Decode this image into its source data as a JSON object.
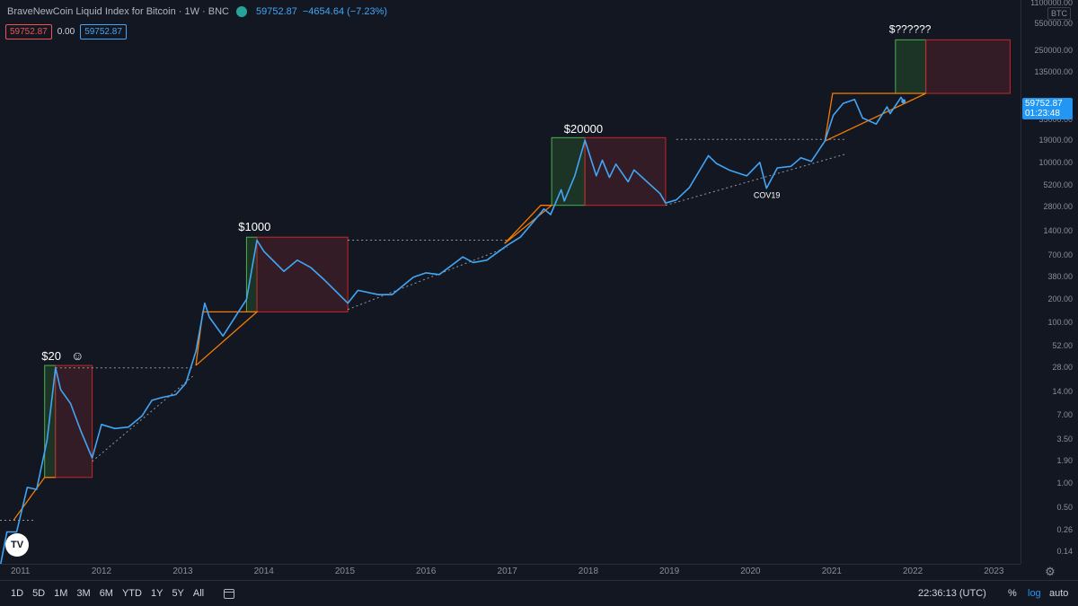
{
  "legend": {
    "title": "BraveNewCoin Liquid Index for Bitcoin · 1W · BNC",
    "last_price": "59752.87",
    "change": "−4654.64 (−7.23%)",
    "ind_red": "59752.87",
    "ind_plain": "0.00",
    "ind_blue": "59752.87"
  },
  "colors": {
    "price_line": "#42a5f5",
    "box_green": "#1f3a26",
    "box_red": "#3a1d26",
    "trend_orange": "#f57c00",
    "accent": "#2196f3"
  },
  "price_axis": {
    "unit_tag": "BTC",
    "top_label": "1100000.00",
    "labels": [
      "550000.00",
      "250000.00",
      "135000.00",
      "59752.87",
      "35000.00",
      "19000.00",
      "10000.00",
      "5200.00",
      "2800.00",
      "1400.00",
      "700.00",
      "380.00",
      "200.00",
      "100.00",
      "52.00",
      "28.00",
      "14.00",
      "7.00",
      "3.50",
      "1.90",
      "1.00",
      "0.50",
      "0.26",
      "0.14"
    ],
    "last_tag_price": "59752.87",
    "last_tag_countdown": "01:23:48"
  },
  "time_axis": {
    "labels": [
      "2011",
      "2012",
      "2013",
      "2014",
      "2015",
      "2016",
      "2017",
      "2018",
      "2019",
      "2020",
      "2021",
      "2022",
      "2023"
    ]
  },
  "bottom_bar": {
    "timeframes": [
      "1D",
      "5D",
      "1M",
      "3M",
      "6M",
      "YTD",
      "1Y",
      "5Y",
      "All"
    ],
    "clock": "22:36:13 (UTC)",
    "percent": "%",
    "log": "log",
    "auto": "auto"
  },
  "annotations": [
    "$20",
    "$1000",
    "$20000",
    "$??????",
    "COV19"
  ],
  "chart_data": {
    "type": "line",
    "yscale": "log",
    "ylim": [
      0.1,
      1100000
    ],
    "xlim": [
      "2010-10",
      "2023-05"
    ],
    "series": [
      {
        "values": [
          [
            "2010-10-01",
            0.09
          ],
          [
            "2010-11-01",
            0.25
          ],
          [
            "2010-12-15",
            0.25
          ],
          [
            "2011-02-01",
            0.9
          ],
          [
            "2011-03-15",
            0.85
          ],
          [
            "2011-05-01",
            3.5
          ],
          [
            "2011-06-08",
            28
          ],
          [
            "2011-07-01",
            15
          ],
          [
            "2011-08-15",
            10
          ],
          [
            "2011-10-01",
            4.5
          ],
          [
            "2011-11-20",
            2.1
          ],
          [
            "2012-01-01",
            5.5
          ],
          [
            "2012-03-01",
            4.9
          ],
          [
            "2012-05-01",
            5.1
          ],
          [
            "2012-07-01",
            7
          ],
          [
            "2012-08-15",
            11
          ],
          [
            "2012-10-01",
            12
          ],
          [
            "2012-12-01",
            13
          ],
          [
            "2013-01-15",
            18
          ],
          [
            "2013-03-01",
            45
          ],
          [
            "2013-04-10",
            180
          ],
          [
            "2013-05-01",
            120
          ],
          [
            "2013-07-01",
            70
          ],
          [
            "2013-09-01",
            130
          ],
          [
            "2013-10-15",
            200
          ],
          [
            "2013-12-01",
            1100
          ],
          [
            "2014-01-01",
            800
          ],
          [
            "2014-02-15",
            600
          ],
          [
            "2014-04-01",
            450
          ],
          [
            "2014-06-01",
            620
          ],
          [
            "2014-08-01",
            500
          ],
          [
            "2014-10-01",
            350
          ],
          [
            "2015-01-14",
            180
          ],
          [
            "2015-03-01",
            260
          ],
          [
            "2015-06-01",
            230
          ],
          [
            "2015-08-01",
            230
          ],
          [
            "2015-11-05",
            380
          ],
          [
            "2016-01-01",
            430
          ],
          [
            "2016-03-01",
            410
          ],
          [
            "2016-06-15",
            680
          ],
          [
            "2016-08-01",
            580
          ],
          [
            "2016-10-01",
            620
          ],
          [
            "2017-01-01",
            950
          ],
          [
            "2017-03-01",
            1200
          ],
          [
            "2017-05-01",
            1900
          ],
          [
            "2017-06-15",
            2700
          ],
          [
            "2017-07-15",
            2300
          ],
          [
            "2017-09-01",
            4700
          ],
          [
            "2017-09-15",
            3400
          ],
          [
            "2017-11-01",
            7000
          ],
          [
            "2017-12-17",
            19500
          ],
          [
            "2018-02-06",
            7000
          ],
          [
            "2018-03-05",
            11000
          ],
          [
            "2018-04-06",
            6700
          ],
          [
            "2018-05-05",
            9800
          ],
          [
            "2018-06-29",
            5900
          ],
          [
            "2018-07-26",
            8300
          ],
          [
            "2018-09-01",
            6700
          ],
          [
            "2018-11-20",
            4200
          ],
          [
            "2018-12-15",
            3200
          ],
          [
            "2019-02-01",
            3500
          ],
          [
            "2019-04-01",
            5000
          ],
          [
            "2019-06-26",
            12500
          ],
          [
            "2019-08-01",
            10000
          ],
          [
            "2019-10-01",
            8200
          ],
          [
            "2019-12-15",
            7000
          ],
          [
            "2020-02-12",
            10300
          ],
          [
            "2020-03-13",
            4900
          ],
          [
            "2020-05-01",
            8800
          ],
          [
            "2020-07-01",
            9200
          ],
          [
            "2020-08-15",
            11800
          ],
          [
            "2020-10-01",
            10600
          ],
          [
            "2020-12-01",
            19000
          ],
          [
            "2021-01-08",
            40000
          ],
          [
            "2021-02-21",
            56000
          ],
          [
            "2021-04-14",
            63000
          ],
          [
            "2021-05-20",
            37000
          ],
          [
            "2021-07-20",
            31000
          ],
          [
            "2021-09-07",
            51000
          ],
          [
            "2021-09-21",
            42000
          ],
          [
            "2021-11-09",
            67000
          ],
          [
            "2021-11-20",
            59752.87
          ]
        ]
      }
    ],
    "green_boxes": [
      {
        "x": [
          "2011-04-20",
          "2011-06-08"
        ],
        "y": [
          1.2,
          30
        ]
      },
      {
        "x": [
          "2013-10-15",
          "2013-12-01"
        ],
        "y": [
          140,
          1200
        ]
      },
      {
        "x": [
          "2017-07-20",
          "2017-12-17"
        ],
        "y": [
          3000,
          21000
        ]
      },
      {
        "x": [
          "2021-10-15",
          "2022-03-01"
        ],
        "y": [
          75000,
          350000
        ]
      }
    ],
    "red_boxes": [
      {
        "x": [
          "2011-06-08",
          "2011-11-20"
        ],
        "y": [
          1.2,
          30
        ]
      },
      {
        "x": [
          "2013-12-01",
          "2015-01-14"
        ],
        "y": [
          140,
          1200
        ]
      },
      {
        "x": [
          "2017-12-17",
          "2018-12-15"
        ],
        "y": [
          3000,
          21000
        ]
      },
      {
        "x": [
          "2022-03-01",
          "2023-03-15"
        ],
        "y": [
          75000,
          350000
        ]
      }
    ]
  }
}
